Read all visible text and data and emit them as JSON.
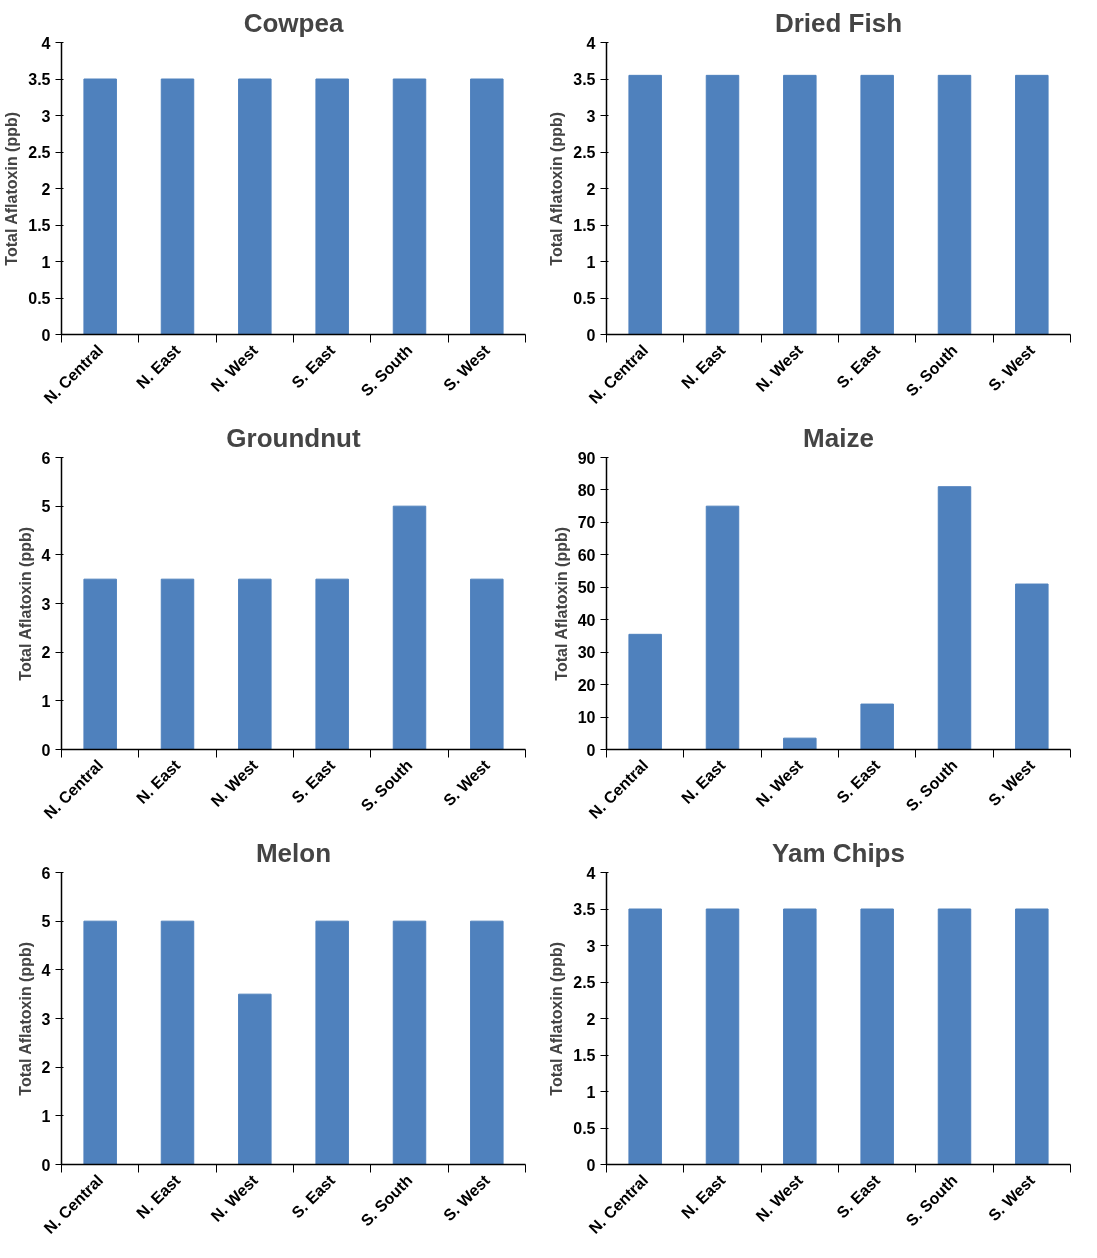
{
  "chart_data": [
    {
      "type": "bar",
      "title": "Cowpea",
      "ylabel": "Total Aflatoxin (ppb)",
      "categories": [
        "N. Central",
        "N. East",
        "N. West",
        "S. East",
        "S. South",
        "S. West"
      ],
      "values": [
        3.5,
        3.5,
        3.5,
        3.5,
        3.5,
        3.5
      ],
      "color": "#4f81bd",
      "ylim": [
        0,
        4
      ],
      "yticks": [
        0,
        0.5,
        1,
        1.5,
        2,
        2.5,
        3,
        3.5,
        4
      ]
    },
    {
      "type": "bar",
      "title": "Dried Fish",
      "ylabel": "Total Aflatoxin (ppb)",
      "categories": [
        "N. Central",
        "N. East",
        "N. West",
        "S. East",
        "S. South",
        "S. West"
      ],
      "values": [
        3.55,
        3.55,
        3.55,
        3.55,
        3.55,
        3.55
      ],
      "color": "#4f81bd",
      "ylim": [
        0,
        4
      ],
      "yticks": [
        0,
        0.5,
        1,
        1.5,
        2,
        2.5,
        3,
        3.5,
        4
      ]
    },
    {
      "type": "bar",
      "title": "Groundnut",
      "ylabel": "Total Aflatoxin (ppb)",
      "categories": [
        "N. Central",
        "N. East",
        "N. West",
        "S. East",
        "S. South",
        "S. West"
      ],
      "values": [
        3.5,
        3.5,
        3.5,
        3.5,
        5,
        3.5
      ],
      "color": "#4f81bd",
      "ylim": [
        0,
        6
      ],
      "yticks": [
        0,
        1,
        2,
        3,
        4,
        5,
        6
      ]
    },
    {
      "type": "bar",
      "title": "Maize",
      "ylabel": "Total Aflatoxin (ppb)",
      "categories": [
        "N. Central",
        "N. East",
        "N. West",
        "S. East",
        "S. South",
        "S. West"
      ],
      "values": [
        35.5,
        75,
        3.5,
        14,
        81,
        51
      ],
      "color": "#4f81bd",
      "ylim": [
        0,
        90
      ],
      "yticks": [
        0,
        10,
        20,
        30,
        40,
        50,
        60,
        70,
        80,
        90
      ]
    },
    {
      "type": "bar",
      "title": "Melon",
      "ylabel": "Total Aflatoxin (ppb)",
      "categories": [
        "N. Central",
        "N. East",
        "N. West",
        "S. East",
        "S. South",
        "S. West"
      ],
      "values": [
        5,
        5,
        3.5,
        5,
        5,
        5
      ],
      "color": "#4f81bd",
      "ylim": [
        0,
        6
      ],
      "yticks": [
        0,
        1,
        2,
        3,
        4,
        5,
        6
      ]
    },
    {
      "type": "bar",
      "title": "Yam Chips",
      "ylabel": "Total Aflatoxin (ppb)",
      "categories": [
        "N. Central",
        "N. East",
        "N. West",
        "S. East",
        "S. South",
        "S. West"
      ],
      "values": [
        3.5,
        3.5,
        3.5,
        3.5,
        3.5,
        3.5
      ],
      "color": "#4f81bd",
      "ylim": [
        0,
        4
      ],
      "yticks": [
        0,
        0.5,
        1,
        1.5,
        2,
        2.5,
        3,
        3.5,
        4
      ]
    }
  ]
}
